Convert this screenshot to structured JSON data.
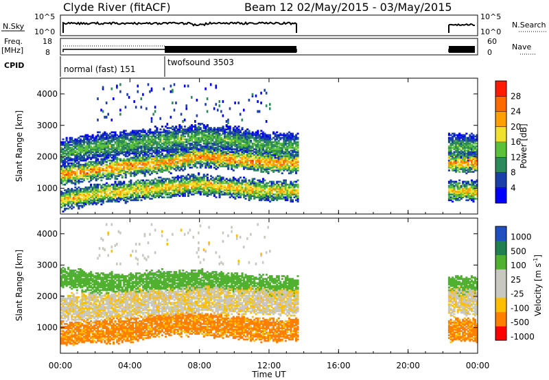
{
  "header": {
    "station": "Clyde River (fitACF)",
    "beam_date": "Beam 12  02/May/2015 - 03/May/2015"
  },
  "strips": {
    "nsky_label": "N.Sky",
    "nsky_ticks": [
      "10^5",
      "10^0"
    ],
    "nsearch_label": "N.Search",
    "freq_label_line1": "Freq.",
    "freq_label_line2": "[MHz]",
    "freq_ticks": [
      "18",
      "8"
    ],
    "nave_ticks": [
      "60",
      "0"
    ],
    "nave_label": "Nave",
    "cpid_label": "CPID",
    "cpid_modes": [
      "normal (fast) 151",
      "twofsound 3503"
    ]
  },
  "colors": {
    "power_scale": [
      "#0000ff",
      "#1a3fa8",
      "#2d8a5a",
      "#5cc13a",
      "#f0e030",
      "#ffa000",
      "#ff6a00",
      "#ff1a00"
    ],
    "velocity_scale": [
      "#ff0000",
      "#ff7f00",
      "#ffbf00",
      "#c8c8c0",
      "#c8c8c0",
      "#50b030",
      "#208050",
      "#2050c0"
    ],
    "axis": "#000000",
    "strip_line": "#000000"
  },
  "chart_data": [
    {
      "type": "heatmap",
      "title": "",
      "xlabel": "",
      "ylabel": "Slant Range [km]",
      "x_ticks": [
        "00:00",
        "04:00",
        "08:00",
        "12:00",
        "16:00",
        "20:00",
        "00:00"
      ],
      "x_hours": [
        0,
        4,
        8,
        12,
        16,
        20,
        24
      ],
      "xlim_hours": [
        0,
        24
      ],
      "y_ticks": [
        1000,
        2000,
        3000,
        4000
      ],
      "ylim_km": [
        180,
        4500
      ],
      "colorbar": {
        "label": "Power [dB]",
        "ticks": [
          28,
          24,
          20,
          16,
          12,
          8,
          4
        ],
        "range": [
          0,
          32
        ]
      },
      "data_coverage_hours": [
        [
          0,
          13.6
        ],
        [
          22.3,
          24
        ]
      ],
      "echo_bands": [
        {
          "center_km": [
            1400,
            1550,
            1700,
            1800,
            2000,
            1900,
            1800
          ],
          "hours": [
            0,
            2,
            4,
            6,
            8,
            10,
            12
          ],
          "width_km": 300,
          "power_db": 26
        },
        {
          "center_km": [
            600,
            800,
            900,
            1000,
            1100,
            1000,
            900
          ],
          "hours": [
            0,
            2,
            4,
            6,
            8,
            10,
            12
          ],
          "width_km": 300,
          "power_db": 22
        },
        {
          "center_km": [
            2100,
            2300,
            2400,
            2500,
            2600,
            2500,
            2300
          ],
          "hours": [
            0,
            2,
            4,
            6,
            8,
            10,
            12
          ],
          "width_km": 400,
          "power_db": 14
        }
      ]
    },
    {
      "type": "heatmap",
      "title": "",
      "xlabel": "Time UT",
      "ylabel": "Slant Range [km]",
      "x_ticks": [
        "00:00",
        "04:00",
        "08:00",
        "12:00",
        "16:00",
        "20:00",
        "00:00"
      ],
      "x_hours": [
        0,
        4,
        8,
        12,
        16,
        20,
        24
      ],
      "xlim_hours": [
        0,
        24
      ],
      "y_ticks": [
        1000,
        2000,
        3000,
        4000
      ],
      "ylim_km": [
        180,
        4500
      ],
      "colorbar": {
        "label": "Velocity [m s-1]",
        "label_main": "Velocity [m s",
        "label_sup": "-1",
        "label_end": "]",
        "ticks": [
          1000,
          500,
          100,
          25,
          -25,
          -100,
          -500,
          -1000
        ]
      },
      "data_coverage_hours": [
        [
          0,
          13.6
        ],
        [
          22.3,
          24
        ]
      ],
      "echo_bands": [
        {
          "center_km": [
            1600,
            1650,
            1750,
            1800,
            1900,
            1850,
            1800
          ],
          "hours": [
            0,
            2,
            4,
            6,
            8,
            10,
            12
          ],
          "width_km": 400,
          "velocity_ms": 0
        },
        {
          "center_km": [
            800,
            850,
            900,
            1100,
            1100,
            1000,
            900
          ],
          "hours": [
            0,
            2,
            4,
            6,
            8,
            10,
            12
          ],
          "width_km": 350,
          "velocity_ms": -150
        },
        {
          "center_km": [
            2600,
            2400,
            2400,
            2500,
            2500,
            2400,
            2300
          ],
          "hours": [
            0,
            2,
            4,
            6,
            8,
            10,
            12
          ],
          "width_km": 300,
          "velocity_ms": 300
        }
      ]
    }
  ]
}
